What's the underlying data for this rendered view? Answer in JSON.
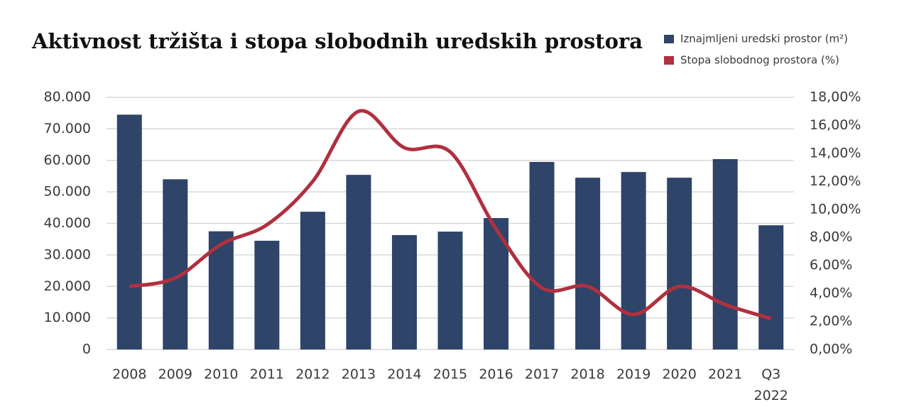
{
  "chart_data": {
    "type": "bar-line",
    "title": "Aktivnost tržišta i stopa slobodnih uredskih prostora",
    "categories": [
      "2008",
      "2009",
      "2010",
      "2011",
      "2012",
      "2013",
      "2014",
      "2015",
      "2016",
      "2017",
      "2018",
      "2019",
      "2020",
      "2021",
      "Q3 2022"
    ],
    "series": [
      {
        "name": "Iznajmljeni uredski prostor (m²)",
        "type": "bar",
        "color": "#2e4468",
        "values": [
          74500,
          54000,
          37500,
          34500,
          43700,
          55400,
          36300,
          37400,
          41700,
          59500,
          54500,
          56300,
          54500,
          60400,
          39400
        ]
      },
      {
        "name": "Stopa slobodnog prostora (%)",
        "type": "line",
        "axis": "y2",
        "color": "#b03040",
        "values": [
          4.5,
          5.1,
          7.5,
          8.9,
          12.0,
          17.0,
          14.4,
          14.1,
          8.6,
          4.4,
          4.5,
          2.5,
          4.5,
          3.2,
          2.2
        ]
      }
    ],
    "ylim": [
      0,
      80000
    ],
    "yticks": [
      0,
      {
        "value": 10000,
        "label": "10.000"
      },
      {
        "value": 20000,
        "label": "20.000"
      },
      {
        "value": 30000,
        "label": "30.000"
      },
      {
        "value": 40000,
        "label": "40.000"
      },
      {
        "value": 50000,
        "label": "50.000"
      },
      {
        "value": 60000,
        "label": "60.000"
      },
      {
        "value": 70000,
        "label": "70.000"
      },
      {
        "value": 80000,
        "label": "80.000"
      }
    ],
    "y2lim": [
      0,
      18
    ],
    "y2ticks": [
      {
        "value": 0,
        "label": "0,00%"
      },
      {
        "value": 2,
        "label": "2,00%"
      },
      {
        "value": 4,
        "label": "4,00%"
      },
      {
        "value": 6,
        "label": "6,00%"
      },
      {
        "value": 8,
        "label": "8,00%"
      },
      {
        "value": 10,
        "label": "10,00%"
      },
      {
        "value": 12,
        "label": "12,00%"
      },
      {
        "value": 14,
        "label": "14,00%"
      },
      {
        "value": 16,
        "label": "16,00%"
      },
      {
        "value": 18,
        "label": "18,00%"
      }
    ],
    "grid": true,
    "legend": "top-right"
  }
}
